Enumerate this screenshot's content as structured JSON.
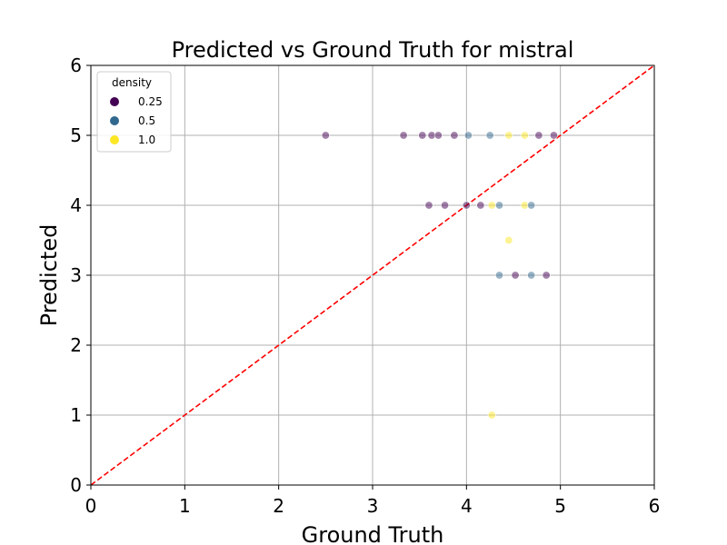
{
  "chart_data": {
    "type": "scatter",
    "title": "Predicted vs Ground Truth for mistral",
    "xlabel": "Ground Truth",
    "ylabel": "Predicted",
    "xlim": [
      0,
      6
    ],
    "ylim": [
      0,
      6
    ],
    "xticks": [
      "0",
      "1",
      "2",
      "3",
      "4",
      "5",
      "6"
    ],
    "yticks": [
      "0",
      "1",
      "2",
      "3",
      "4",
      "5",
      "6"
    ],
    "grid": true,
    "reference_line": {
      "from": [
        0,
        0
      ],
      "to": [
        6,
        6
      ],
      "color": "#ff0000",
      "style": "dashed"
    },
    "legend": {
      "title": "density",
      "placement": "top-left",
      "entries": [
        {
          "label": "0.25",
          "color": "#440154"
        },
        {
          "label": "0.5",
          "color": "#31688e"
        },
        {
          "label": "1.0",
          "color": "#fde725"
        }
      ]
    },
    "points": [
      {
        "x": 2.5,
        "y": 5,
        "density": 0.25
      },
      {
        "x": 3.33,
        "y": 5,
        "density": 0.25
      },
      {
        "x": 3.53,
        "y": 5,
        "density": 0.25
      },
      {
        "x": 3.63,
        "y": 5,
        "density": 0.25
      },
      {
        "x": 3.7,
        "y": 5,
        "density": 0.25
      },
      {
        "x": 3.87,
        "y": 5,
        "density": 0.25
      },
      {
        "x": 4.02,
        "y": 5,
        "density": 0.5
      },
      {
        "x": 4.25,
        "y": 5,
        "density": 0.5
      },
      {
        "x": 4.45,
        "y": 5,
        "density": 1.0
      },
      {
        "x": 4.62,
        "y": 5,
        "density": 1.0
      },
      {
        "x": 4.77,
        "y": 5,
        "density": 0.25
      },
      {
        "x": 4.93,
        "y": 5,
        "density": 0.25
      },
      {
        "x": 3.6,
        "y": 4,
        "density": 0.25
      },
      {
        "x": 3.77,
        "y": 4,
        "density": 0.25
      },
      {
        "x": 4.0,
        "y": 4,
        "density": 0.25
      },
      {
        "x": 4.15,
        "y": 4,
        "density": 0.25
      },
      {
        "x": 4.27,
        "y": 4,
        "density": 1.0
      },
      {
        "x": 4.35,
        "y": 4,
        "density": 0.5
      },
      {
        "x": 4.62,
        "y": 4,
        "density": 1.0
      },
      {
        "x": 4.69,
        "y": 4,
        "density": 0.5
      },
      {
        "x": 4.45,
        "y": 3.5,
        "density": 1.0
      },
      {
        "x": 4.35,
        "y": 3,
        "density": 0.5
      },
      {
        "x": 4.52,
        "y": 3,
        "density": 0.25
      },
      {
        "x": 4.69,
        "y": 3,
        "density": 0.5
      },
      {
        "x": 4.85,
        "y": 3,
        "density": 0.25
      },
      {
        "x": 4.27,
        "y": 1,
        "density": 1.0
      }
    ]
  }
}
